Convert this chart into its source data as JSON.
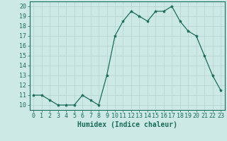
{
  "x": [
    0,
    1,
    2,
    3,
    4,
    5,
    6,
    7,
    8,
    9,
    10,
    11,
    12,
    13,
    14,
    15,
    16,
    17,
    18,
    19,
    20,
    21,
    22,
    23
  ],
  "y": [
    11,
    11,
    10.5,
    10,
    10,
    10,
    11,
    10.5,
    10,
    13,
    17,
    18.5,
    19.5,
    19,
    18.5,
    19.5,
    19.5,
    20,
    18.5,
    17.5,
    17,
    15,
    13,
    11.5
  ],
  "line_color": "#1a6b5a",
  "marker": "*",
  "marker_size": 3,
  "bg_color": "#cce9e5",
  "grid_color": "#b8d8d4",
  "xlabel": "Humidex (Indice chaleur)",
  "xlim": [
    -0.5,
    23.5
  ],
  "ylim": [
    9.5,
    20.5
  ],
  "xticks": [
    0,
    1,
    2,
    3,
    4,
    5,
    6,
    7,
    8,
    9,
    10,
    11,
    12,
    13,
    14,
    15,
    16,
    17,
    18,
    19,
    20,
    21,
    22,
    23
  ],
  "yticks": [
    10,
    11,
    12,
    13,
    14,
    15,
    16,
    17,
    18,
    19,
    20
  ],
  "xlabel_fontsize": 7,
  "tick_fontsize": 6,
  "axis_color": "#1a6b5a",
  "spine_color": "#1a6b5a"
}
